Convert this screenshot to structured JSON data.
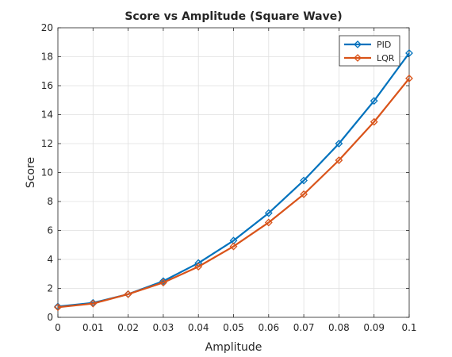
{
  "chart_data": {
    "type": "line",
    "title": "Score vs Amplitude (Square Wave)",
    "xlabel": "Amplitude",
    "ylabel": "Score",
    "xlim": [
      0,
      0.1
    ],
    "ylim": [
      0,
      20
    ],
    "xticks": [
      0,
      0.01,
      0.02,
      0.03,
      0.04,
      0.05,
      0.06,
      0.07,
      0.08,
      0.09,
      0.1
    ],
    "xtick_labels": [
      "0",
      "0.01",
      "0.02",
      "0.03",
      "0.04",
      "0.05",
      "0.06",
      "0.07",
      "0.08",
      "0.09",
      "0.1"
    ],
    "yticks": [
      0,
      2,
      4,
      6,
      8,
      10,
      12,
      14,
      16,
      18,
      20
    ],
    "ytick_labels": [
      "0",
      "2",
      "4",
      "6",
      "8",
      "10",
      "12",
      "14",
      "16",
      "18",
      "20"
    ],
    "grid": true,
    "legend_position": "top-right",
    "x": [
      0,
      0.01,
      0.02,
      0.03,
      0.04,
      0.05,
      0.06,
      0.07,
      0.08,
      0.09,
      0.1
    ],
    "series": [
      {
        "name": "PID",
        "color": "#0072BD",
        "marker": "diamond",
        "values": [
          0.75,
          1.0,
          1.6,
          2.5,
          3.75,
          5.3,
          7.2,
          9.45,
          12.0,
          14.95,
          18.25
        ]
      },
      {
        "name": "LQR",
        "color": "#D95319",
        "marker": "diamond",
        "values": [
          0.7,
          0.95,
          1.6,
          2.4,
          3.5,
          4.9,
          6.55,
          8.5,
          10.85,
          13.5,
          16.5
        ]
      }
    ]
  }
}
